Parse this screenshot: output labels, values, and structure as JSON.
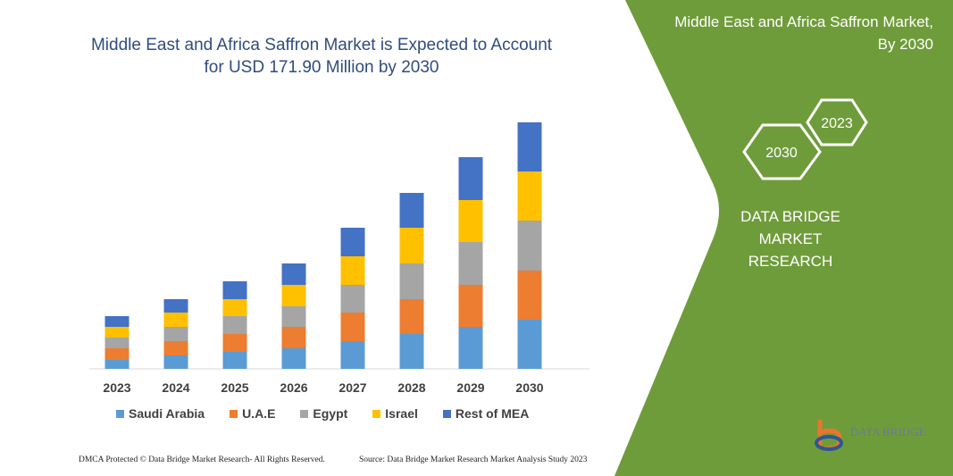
{
  "header": {
    "title_line1": "Middle East and Africa Saffron Market is Expected to Account",
    "title_line2": "for USD 171.90 Million by 2030"
  },
  "side_panel": {
    "title_line1": "Middle East and Africa Saffron Market,",
    "title_line2": "By 2030",
    "hex_start": "2023",
    "hex_end": "2030",
    "brand_line1": "DATA BRIDGE MARKET",
    "brand_line2": "RESEARCH",
    "logo_text": "DATA BRIDGE",
    "color": "#6f9c3a"
  },
  "footer": {
    "copyright": "DMCA Protected © Data Bridge Market Research- All Rights Reserved.",
    "source": "Source: Data Bridge Market Research Market Analysis Study 2023"
  },
  "chart_data": {
    "type": "bar",
    "stacked": true,
    "units": "relative (no value axis shown)",
    "categories": [
      "2023",
      "2024",
      "2025",
      "2026",
      "2027",
      "2028",
      "2029",
      "2030"
    ],
    "series": [
      {
        "name": "Saudi Arabia",
        "color": "#5b9bd5",
        "values": [
          10,
          15,
          19,
          23,
          31,
          39,
          47,
          55
        ]
      },
      {
        "name": "U.A.E",
        "color": "#ed7d31",
        "values": [
          13,
          16,
          20,
          24,
          32,
          39,
          47,
          55
        ]
      },
      {
        "name": "Egypt",
        "color": "#a5a5a5",
        "values": [
          12,
          16,
          20,
          23,
          31,
          40,
          48,
          56
        ]
      },
      {
        "name": "Israel",
        "color": "#ffc000",
        "values": [
          12,
          16,
          19,
          24,
          32,
          40,
          47,
          55
        ]
      },
      {
        "name": "Rest of MEA",
        "color": "#4472c4",
        "values": [
          12,
          15,
          20,
          24,
          32,
          39,
          48,
          55
        ]
      }
    ],
    "legend_position": "bottom",
    "grid": false
  }
}
